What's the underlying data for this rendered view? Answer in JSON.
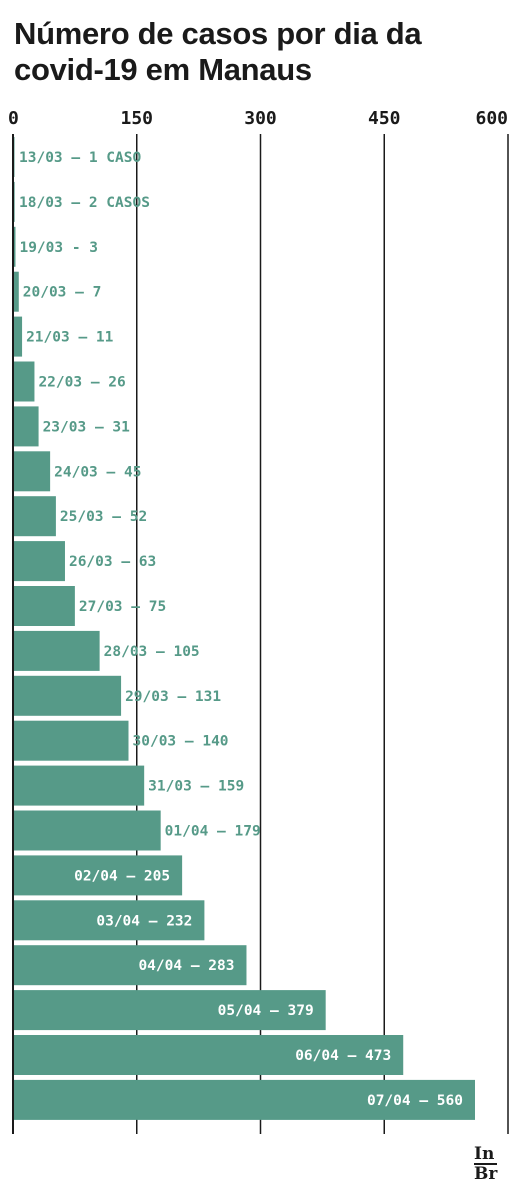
{
  "title": "Número de casos por dia da covid-19 em Manaus",
  "logo": {
    "line1": "In",
    "line2": "Br"
  },
  "colors": {
    "bar": "#569a88",
    "label_outside": "#569a88",
    "label_inside": "#ffffff",
    "axis": "#1a1a1a"
  },
  "chart_data": {
    "type": "bar",
    "orientation": "horizontal",
    "xlim": [
      0,
      600
    ],
    "ticks": [
      0,
      150,
      300,
      450,
      600
    ],
    "tick_labels": [
      "0",
      "150",
      "300",
      "450",
      "600"
    ],
    "grid": true,
    "bars": [
      {
        "date": "13/03",
        "value": 1,
        "label": "13/03 – 1 CASO"
      },
      {
        "date": "18/03",
        "value": 2,
        "label": "18/03 – 2 CASOS"
      },
      {
        "date": "19/03",
        "value": 3,
        "label": "19/03 - 3"
      },
      {
        "date": "20/03",
        "value": 7,
        "label": "20/03 – 7"
      },
      {
        "date": "21/03",
        "value": 11,
        "label": "21/03 – 11"
      },
      {
        "date": "22/03",
        "value": 26,
        "label": "22/03 – 26"
      },
      {
        "date": "23/03",
        "value": 31,
        "label": "23/03 – 31"
      },
      {
        "date": "24/03",
        "value": 45,
        "label": "24/03 – 45"
      },
      {
        "date": "25/03",
        "value": 52,
        "label": "25/03 – 52"
      },
      {
        "date": "26/03",
        "value": 63,
        "label": "26/03 – 63"
      },
      {
        "date": "27/03",
        "value": 75,
        "label": "27/03 – 75"
      },
      {
        "date": "28/03",
        "value": 105,
        "label": "28/03 – 105"
      },
      {
        "date": "29/03",
        "value": 131,
        "label": "29/03 – 131"
      },
      {
        "date": "30/03",
        "value": 140,
        "label": "30/03 – 140"
      },
      {
        "date": "31/03",
        "value": 159,
        "label": "31/03 – 159"
      },
      {
        "date": "01/04",
        "value": 179,
        "label": "01/04 – 179"
      },
      {
        "date": "02/04",
        "value": 205,
        "label": "02/04 – 205"
      },
      {
        "date": "03/04",
        "value": 232,
        "label": "03/04 – 232"
      },
      {
        "date": "04/04",
        "value": 283,
        "label": "04/04 – 283"
      },
      {
        "date": "05/04",
        "value": 379,
        "label": "05/04 – 379"
      },
      {
        "date": "06/04",
        "value": 473,
        "label": "06/04 – 473"
      },
      {
        "date": "07/04",
        "value": 560,
        "label": "07/04 – 560"
      }
    ]
  }
}
